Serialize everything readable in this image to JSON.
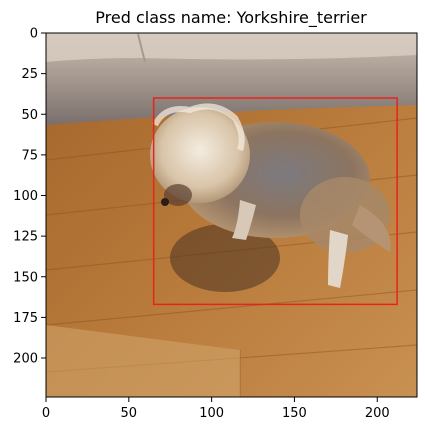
{
  "plot": {
    "title": "Pred class name: Yorkshire_terrier",
    "image_size": [
      224,
      224
    ],
    "xlim": [
      0,
      224
    ],
    "ylim": [
      224,
      0
    ],
    "x_ticks": [
      {
        "value": 0,
        "label": "0"
      },
      {
        "value": 50,
        "label": "50"
      },
      {
        "value": 100,
        "label": "100"
      },
      {
        "value": 150,
        "label": "150"
      },
      {
        "value": 200,
        "label": "200"
      }
    ],
    "y_ticks": [
      {
        "value": 0,
        "label": "0"
      },
      {
        "value": 25,
        "label": "25"
      },
      {
        "value": 50,
        "label": "50"
      },
      {
        "value": 75,
        "label": "75"
      },
      {
        "value": 100,
        "label": "100"
      },
      {
        "value": 125,
        "label": "125"
      },
      {
        "value": 150,
        "label": "150"
      },
      {
        "value": 175,
        "label": "175"
      },
      {
        "value": 200,
        "label": "200"
      }
    ],
    "bbox_data": {
      "x0": 65,
      "y0": 40,
      "x1": 212,
      "y1": 167
    },
    "bbox_color": "#e8231c"
  }
}
